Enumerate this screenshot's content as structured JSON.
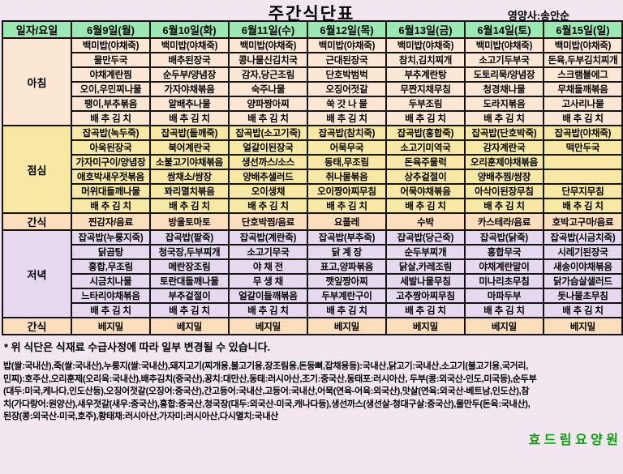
{
  "title": "주간식단표",
  "nutritionist": "영양사:송안순",
  "header": {
    "corner": "일자/요일",
    "days": [
      "6월9일(월)",
      "6월10일(화)",
      "6월11일(수)",
      "6월12일(목)",
      "6월13일(금)",
      "6월14일(토)",
      "6월15일(일)"
    ]
  },
  "sections": [
    {
      "id": "breakfast",
      "label": "아침",
      "rows": [
        [
          "백미밥(야채죽)",
          "백미밥(야채죽)",
          "백미밥(야채죽)",
          "백미밥(야채죽)",
          "백미밥(야채죽)",
          "백미밥(야채죽)",
          "백미밥(야채죽)"
        ],
        [
          "물만두국",
          "배추된장국",
          "콩나물신김치국",
          "근대된장국",
          "참치,김치찌개",
          "소고기두부국",
          "돈육,두부김치찌개"
        ],
        [
          "야채계란찜",
          "순두부/양념장",
          "감자,당근조림",
          "단호박범벅",
          "부추계란탕",
          "도토리묵/양념장",
          "스크램블에그"
        ],
        [
          "오이,우민찌나물",
          "가자야채볶음",
          "숙주나물",
          "오징어젓갈",
          "무짠지채무침",
          "청경채나물",
          "무채들깨볶음"
        ],
        [
          "팽이,부추볶음",
          "알배추나물",
          "양파짱아찌",
          "쑥 갓 나 물",
          "두부조림",
          "도라지볶음",
          "고사리나물"
        ],
        [
          "배 추 김 치",
          "배 추 김 치",
          "배 추 김 치",
          "배 추 김 치",
          "배 추 김 치",
          "배 추 김 치",
          "배 추 김 치"
        ]
      ]
    },
    {
      "id": "lunch",
      "label": "점심",
      "rows": [
        [
          "잡곡밥(녹두죽)",
          "잡곡밥(들깨죽)",
          "잡곡밥(소고기죽)",
          "잡곡밥(참치죽)",
          "잡곡밥(홍합죽)",
          "잡곡밥(단호박죽)",
          "잡곡밥(야채죽)"
        ],
        [
          "아욱된장국",
          "북어계란국",
          "얼갈이된장국",
          "어묵무국",
          "소고기미역국",
          "감자계란국",
          "떡만두국"
        ],
        [
          "가자미구이/양념장",
          "소불고기야채볶음",
          "생선까스/소스",
          "동태,무조림",
          "돈육주물럭",
          "오리훈제야채볶음",
          ""
        ],
        [
          "애호박새우젓볶음",
          "쌈채소/쌈장",
          "양배추샐러드",
          "취나물볶음",
          "상추겉절이",
          "양배추찜/쌈장",
          ""
        ],
        [
          "머위대들깨나물",
          "꽈리멸치볶음",
          "오이생채",
          "오이짱아찌무침",
          "어묵야채볶음",
          "아삭이된장무침",
          "단무지무침"
        ],
        [
          "배 추 김 치",
          "배 추 김 치",
          "배 추 김 치",
          "배 추 김 치",
          "배 추 김 치",
          "배 추 김 치",
          "배 추 김 치"
        ]
      ]
    },
    {
      "id": "snack1",
      "label": "간식",
      "items": [
        "찐감자/음료",
        "방울토마토",
        "단호박찜/음료",
        "요플레",
        "수박",
        "카스테라/음료",
        "호박고구마/음료"
      ]
    },
    {
      "id": "dinner",
      "label": "저녁",
      "rows": [
        [
          "잡곡밥(누룽지죽)",
          "잡곡밥(팥죽)",
          "잡곡밥(계란죽)",
          "잡곡밥(부추죽)",
          "잡곡밥(당근죽)",
          "잡곡밥(닭죽)",
          "잡곡밥(시금치죽)"
        ],
        [
          "닭곰탕",
          "청국장,두부찌개",
          "소고기무국",
          "닭 계 장",
          "순두부찌개",
          "홍합무국",
          "시레기된장국"
        ],
        [
          "홍합,무조림",
          "메란장조림",
          "야 채 전",
          "표고,양파볶음",
          "닭살,카레조림",
          "야채계란말이",
          "새송이야채볶음"
        ],
        [
          "시금치나물",
          "토란대들깨나물",
          "무 생 채",
          "깻잎짱아찌",
          "세발나물무침",
          "미나리초무침",
          "닭가슴살샐러드"
        ],
        [
          "느타리야채볶음",
          "부추겉절이",
          "얼갈이들깨볶음",
          "두부계란구이",
          "고추짱아찌무침",
          "마파두부",
          "돗나물초무침"
        ],
        [
          "배 추 김 치",
          "배 추 김 치",
          "배 추 김 치",
          "배 추 김 치",
          "배 추 김 치",
          "배 추 김 치",
          "배 추 김 치"
        ]
      ]
    },
    {
      "id": "snack2",
      "label": "간식",
      "items": [
        "베지밀",
        "베지밀",
        "베지밀",
        "베지밀",
        "베지밀",
        "베지밀",
        "베지밀"
      ]
    }
  ],
  "footnote": "* 위 식단은 식재료 수급사정에 따라 일부 변경될 수 있습니다.",
  "origin_lines": [
    "밥(쌀:국내산),죽(쌀:국내산),누룽지(쌀:국내산),돼지고기(찌개용,불고기용,장조림용,돈등뼈,잡채용등):국내산,닭고기:국내산,소고기(불고기용,국거리,",
    "민찌):호주산,오리훈제(오리육:국내산),배추김치(중국산),꽁치:대만산,동태:러시아산,조기:중국산,동태포:러시아산, 두부(콩:외국산-인도,미국등),순두부",
    "(대두:미국,케나다,인도산등),오징어젓갈(오징어:중국산),간고등어:국내산,고등어:국내산,어묵(연육-어육:외국산),맛살(연육:외국산-베트남,인도산),참",
    "치(가다랑어:원양산),새우젓갈(새우:중국산),홍합:중국산,청국장(대두:외국산-미국,캐나다등),생선까스(생선살-청대구살:중국산),물만두(돈육:국내산),",
    "된장(콩:외국산-미국,호주),황태채:러시아산,가자미:러시아산,다시멸치:국내산"
  ],
  "facility": "효 드 림 요 양 원",
  "colors": {
    "page": "#f2e7f0",
    "header": "#9ae8b2",
    "breakfast": "#fce7d4",
    "lunch": "#f7e9a3",
    "snack": "#fcdebc",
    "dinner": "#e6d8ef",
    "facility": "#0aa00a",
    "border": "#141414"
  }
}
